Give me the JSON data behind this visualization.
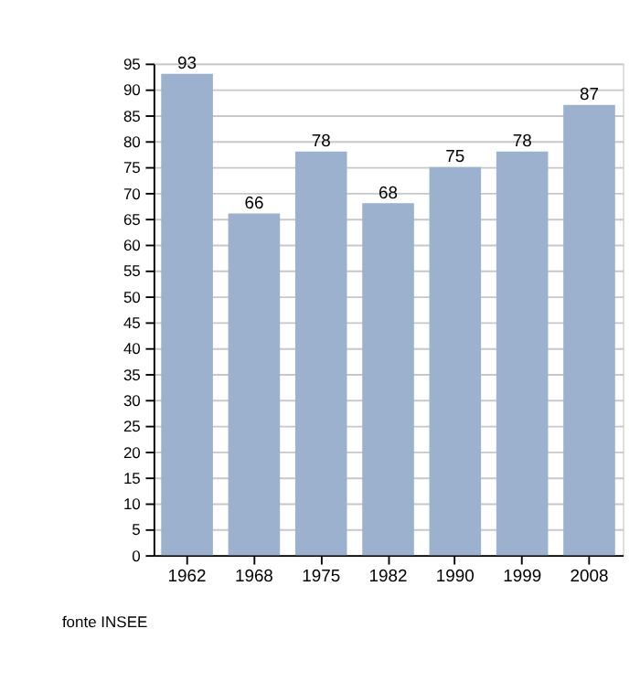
{
  "chart_data": {
    "type": "bar",
    "categories": [
      "1962",
      "1968",
      "1975",
      "1982",
      "1990",
      "1999",
      "2008"
    ],
    "values": [
      93,
      66,
      78,
      68,
      75,
      78,
      87
    ],
    "color": "#9bb1cd",
    "ylim": [
      0,
      95
    ],
    "yticks": [
      0,
      5,
      10,
      15,
      20,
      25,
      30,
      35,
      40,
      45,
      50,
      55,
      60,
      65,
      70,
      75,
      80,
      85,
      90,
      95
    ],
    "grid": "y",
    "data_labels": true,
    "annotations": [
      "fonte INSEE"
    ]
  }
}
